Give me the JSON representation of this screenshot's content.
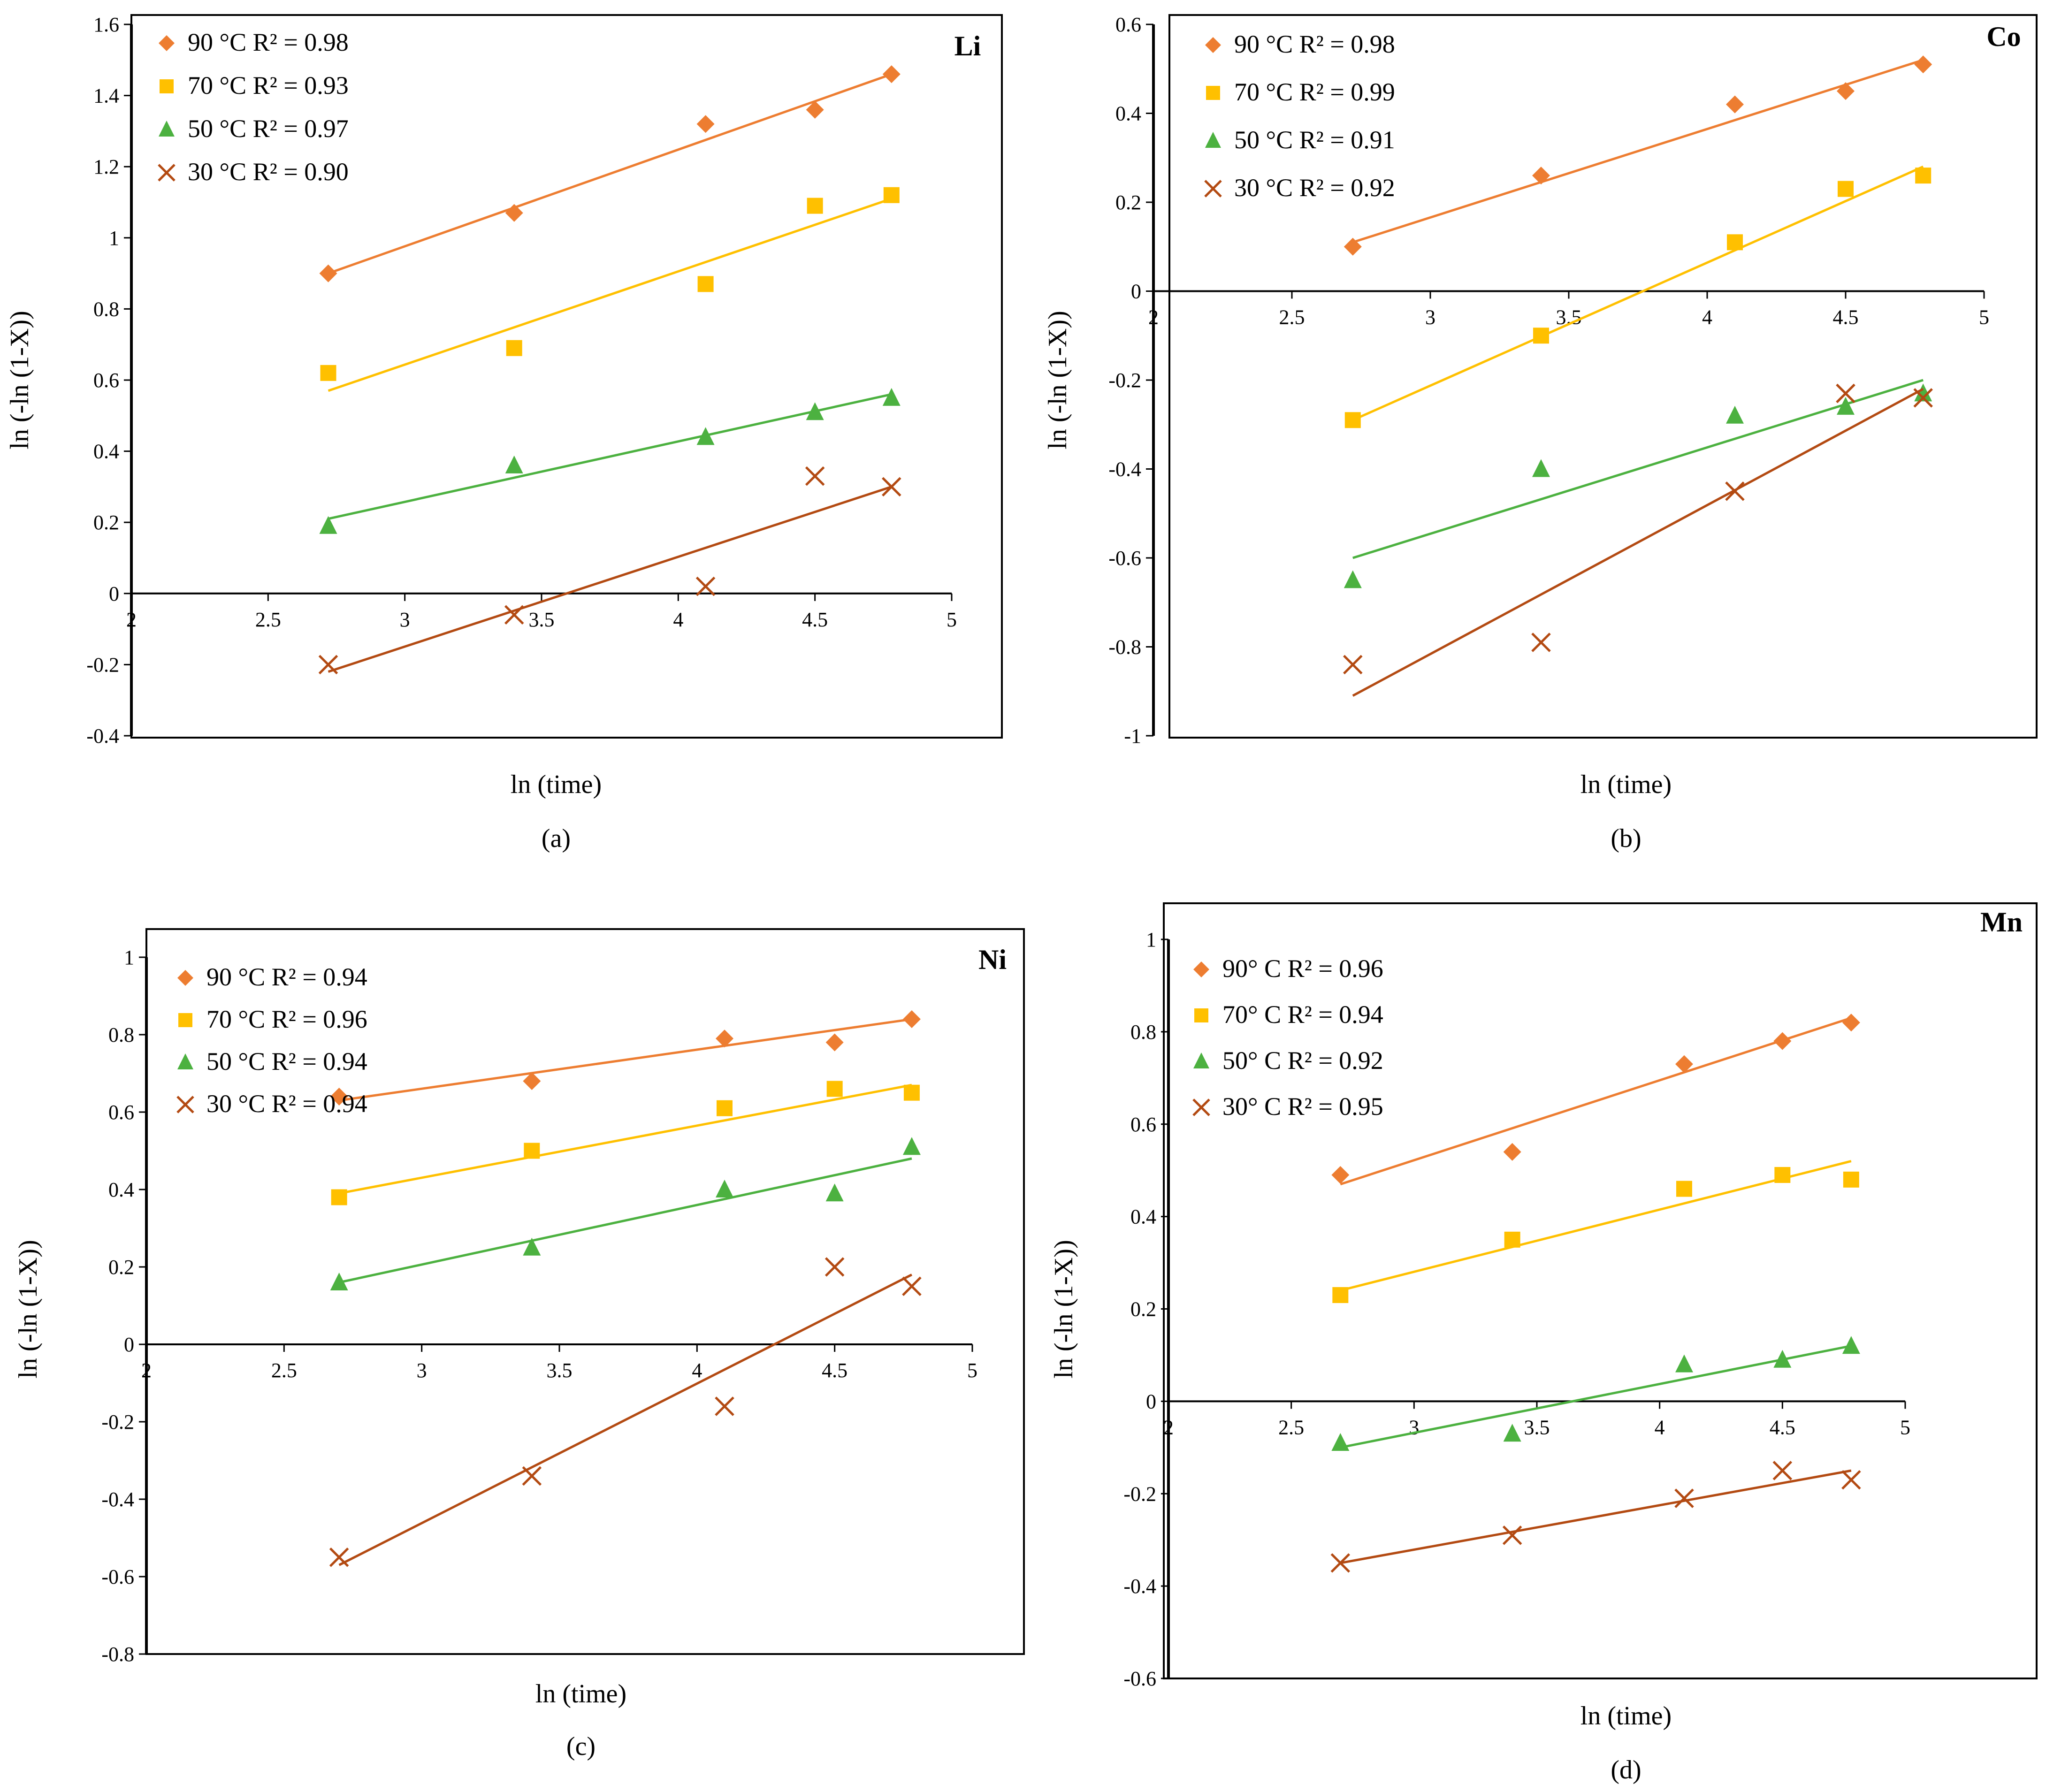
{
  "chart_data": [
    {
      "id": "a",
      "type": "scatter",
      "panel_title": "Li",
      "caption": "(a)",
      "xlabel": "ln (time)",
      "ylabel": "ln (-ln (1-X))",
      "xlim": [
        2,
        5
      ],
      "ylim": [
        -0.4,
        1.6
      ],
      "xticks": [
        2,
        2.5,
        3,
        3.5,
        4,
        4.5,
        5
      ],
      "yticks": [
        -0.4,
        -0.2,
        0,
        0.2,
        0.4,
        0.6,
        0.8,
        1,
        1.2,
        1.4,
        1.6
      ],
      "series": [
        {
          "name": "90 °C",
          "r2_label": "R² = 0.98",
          "marker": "diamond",
          "color": "#ED7D31",
          "x": [
            2.72,
            3.4,
            4.1,
            4.5,
            4.78
          ],
          "y": [
            0.9,
            1.07,
            1.32,
            1.36,
            1.46
          ],
          "fit": [
            [
              2.72,
              0.9
            ],
            [
              4.78,
              1.46
            ]
          ]
        },
        {
          "name": "70 °C",
          "r2_label": "R² = 0.93",
          "marker": "square",
          "color": "#FFC000",
          "x": [
            2.72,
            3.4,
            4.1,
            4.5,
            4.78
          ],
          "y": [
            0.62,
            0.69,
            0.87,
            1.09,
            1.12
          ],
          "fit": [
            [
              2.72,
              0.57
            ],
            [
              4.78,
              1.11
            ]
          ]
        },
        {
          "name": "50 °C",
          "r2_label": "R² = 0.97",
          "marker": "triangle",
          "color": "#4CB140",
          "x": [
            2.72,
            3.4,
            4.1,
            4.5,
            4.78
          ],
          "y": [
            0.19,
            0.36,
            0.44,
            0.51,
            0.55
          ],
          "fit": [
            [
              2.72,
              0.21
            ],
            [
              4.78,
              0.56
            ]
          ]
        },
        {
          "name": "30 °C",
          "r2_label": "R² = 0.90",
          "marker": "x",
          "color": "#B34A12",
          "x": [
            2.72,
            3.4,
            4.1,
            4.5,
            4.78
          ],
          "y": [
            -0.2,
            -0.06,
            0.02,
            0.33,
            0.3
          ],
          "fit": [
            [
              2.72,
              -0.22
            ],
            [
              4.78,
              0.3
            ]
          ]
        }
      ]
    },
    {
      "id": "b",
      "type": "scatter",
      "panel_title": "Co",
      "caption": "(b)",
      "xlabel": "ln (time)",
      "ylabel": "ln (-ln (1-X))",
      "xlim": [
        2,
        5
      ],
      "ylim": [
        -1,
        0.6
      ],
      "xticks": [
        2,
        2.5,
        3,
        3.5,
        4,
        4.5,
        5
      ],
      "yticks": [
        -1,
        -0.8,
        -0.6,
        -0.4,
        -0.2,
        0,
        0.2,
        0.4,
        0.6
      ],
      "series": [
        {
          "name": "90 °C",
          "r2_label": "R² = 0.98",
          "marker": "diamond",
          "color": "#ED7D31",
          "x": [
            2.72,
            3.4,
            4.1,
            4.5,
            4.78
          ],
          "y": [
            0.1,
            0.26,
            0.42,
            0.45,
            0.51
          ],
          "fit": [
            [
              2.72,
              0.11
            ],
            [
              4.78,
              0.52
            ]
          ]
        },
        {
          "name": "70 °C",
          "r2_label": "R² = 0.99",
          "marker": "square",
          "color": "#FFC000",
          "x": [
            2.72,
            3.4,
            4.1,
            4.5,
            4.78
          ],
          "y": [
            -0.29,
            -0.1,
            0.11,
            0.23,
            0.26
          ],
          "fit": [
            [
              2.72,
              -0.29
            ],
            [
              4.78,
              0.28
            ]
          ]
        },
        {
          "name": "50 °C",
          "r2_label": "R² = 0.91",
          "marker": "triangle",
          "color": "#4CB140",
          "x": [
            2.72,
            3.4,
            4.1,
            4.5,
            4.78
          ],
          "y": [
            -0.65,
            -0.4,
            -0.28,
            -0.26,
            -0.23
          ],
          "fit": [
            [
              2.72,
              -0.6
            ],
            [
              4.78,
              -0.2
            ]
          ]
        },
        {
          "name": "30 °C",
          "r2_label": "R² = 0.92",
          "marker": "x",
          "color": "#B34A12",
          "x": [
            2.72,
            3.4,
            4.1,
            4.5,
            4.78
          ],
          "y": [
            -0.84,
            -0.79,
            -0.45,
            -0.23,
            -0.24
          ],
          "fit": [
            [
              2.72,
              -0.91
            ],
            [
              4.78,
              -0.22
            ]
          ]
        }
      ]
    },
    {
      "id": "c",
      "type": "scatter",
      "panel_title": "Ni",
      "caption": "(c)",
      "xlabel": "ln (time)",
      "ylabel": "ln (-ln (1-X))",
      "xlim": [
        2,
        5
      ],
      "ylim": [
        -0.8,
        1
      ],
      "xticks": [
        2,
        2.5,
        3,
        3.5,
        4,
        4.5,
        5
      ],
      "yticks": [
        -0.8,
        -0.6,
        -0.4,
        -0.2,
        0,
        0.2,
        0.4,
        0.6,
        0.8,
        1
      ],
      "series": [
        {
          "name": "90 °C",
          "r2_label": "R² = 0.94",
          "marker": "diamond",
          "color": "#ED7D31",
          "x": [
            2.7,
            3.4,
            4.1,
            4.5,
            4.78
          ],
          "y": [
            0.64,
            0.68,
            0.79,
            0.78,
            0.84
          ],
          "fit": [
            [
              2.7,
              0.63
            ],
            [
              4.78,
              0.84
            ]
          ]
        },
        {
          "name": "70 °C",
          "r2_label": "R² = 0.96",
          "marker": "square",
          "color": "#FFC000",
          "x": [
            2.7,
            3.4,
            4.1,
            4.5,
            4.78
          ],
          "y": [
            0.38,
            0.5,
            0.61,
            0.66,
            0.65
          ],
          "fit": [
            [
              2.7,
              0.39
            ],
            [
              4.78,
              0.67
            ]
          ]
        },
        {
          "name": "50 °C",
          "r2_label": "R² = 0.94",
          "marker": "triangle",
          "color": "#4CB140",
          "x": [
            2.7,
            3.4,
            4.1,
            4.5,
            4.78
          ],
          "y": [
            0.16,
            0.25,
            0.4,
            0.39,
            0.51
          ],
          "fit": [
            [
              2.7,
              0.16
            ],
            [
              4.78,
              0.48
            ]
          ]
        },
        {
          "name": "30 °C",
          "r2_label": "R² = 0.94",
          "marker": "x",
          "color": "#B34A12",
          "x": [
            2.7,
            3.4,
            4.1,
            4.5,
            4.78
          ],
          "y": [
            -0.55,
            -0.34,
            -0.16,
            0.2,
            0.15
          ],
          "fit": [
            [
              2.7,
              -0.57
            ],
            [
              4.78,
              0.18
            ]
          ]
        }
      ]
    },
    {
      "id": "d",
      "type": "scatter",
      "panel_title": "Mn",
      "caption": "(d)",
      "xlabel": "ln (time)",
      "ylabel": "ln (-ln (1-X))",
      "xlim": [
        2,
        5
      ],
      "ylim": [
        -0.6,
        1
      ],
      "xticks": [
        2,
        2.5,
        3,
        3.5,
        4,
        4.5,
        5
      ],
      "yticks": [
        -0.6,
        -0.4,
        -0.2,
        0,
        0.2,
        0.4,
        0.6,
        0.8,
        1
      ],
      "series": [
        {
          "name": "90° C",
          "r2_label": "R² = 0.96",
          "marker": "diamond",
          "color": "#ED7D31",
          "x": [
            2.7,
            3.4,
            4.1,
            4.5,
            4.78
          ],
          "y": [
            0.49,
            0.54,
            0.73,
            0.78,
            0.82
          ],
          "fit": [
            [
              2.7,
              0.47
            ],
            [
              4.78,
              0.83
            ]
          ]
        },
        {
          "name": "70° C",
          "r2_label": "R² = 0.94",
          "marker": "square",
          "color": "#FFC000",
          "x": [
            2.7,
            3.4,
            4.1,
            4.5,
            4.78
          ],
          "y": [
            0.23,
            0.35,
            0.46,
            0.49,
            0.48
          ],
          "fit": [
            [
              2.7,
              0.24
            ],
            [
              4.78,
              0.52
            ]
          ]
        },
        {
          "name": "50° C",
          "r2_label": "R² = 0.92",
          "marker": "triangle",
          "color": "#4CB140",
          "x": [
            2.7,
            3.4,
            4.1,
            4.5,
            4.78
          ],
          "y": [
            -0.09,
            -0.07,
            0.08,
            0.09,
            0.12
          ],
          "fit": [
            [
              2.7,
              -0.1
            ],
            [
              4.78,
              0.12
            ]
          ]
        },
        {
          "name": "30° C",
          "r2_label": "R² = 0.95",
          "marker": "x",
          "color": "#B34A12",
          "x": [
            2.7,
            3.4,
            4.1,
            4.5,
            4.78
          ],
          "y": [
            -0.35,
            -0.29,
            -0.21,
            -0.15,
            -0.17
          ],
          "fit": [
            [
              2.7,
              -0.35
            ],
            [
              4.78,
              -0.15
            ]
          ]
        }
      ]
    }
  ]
}
